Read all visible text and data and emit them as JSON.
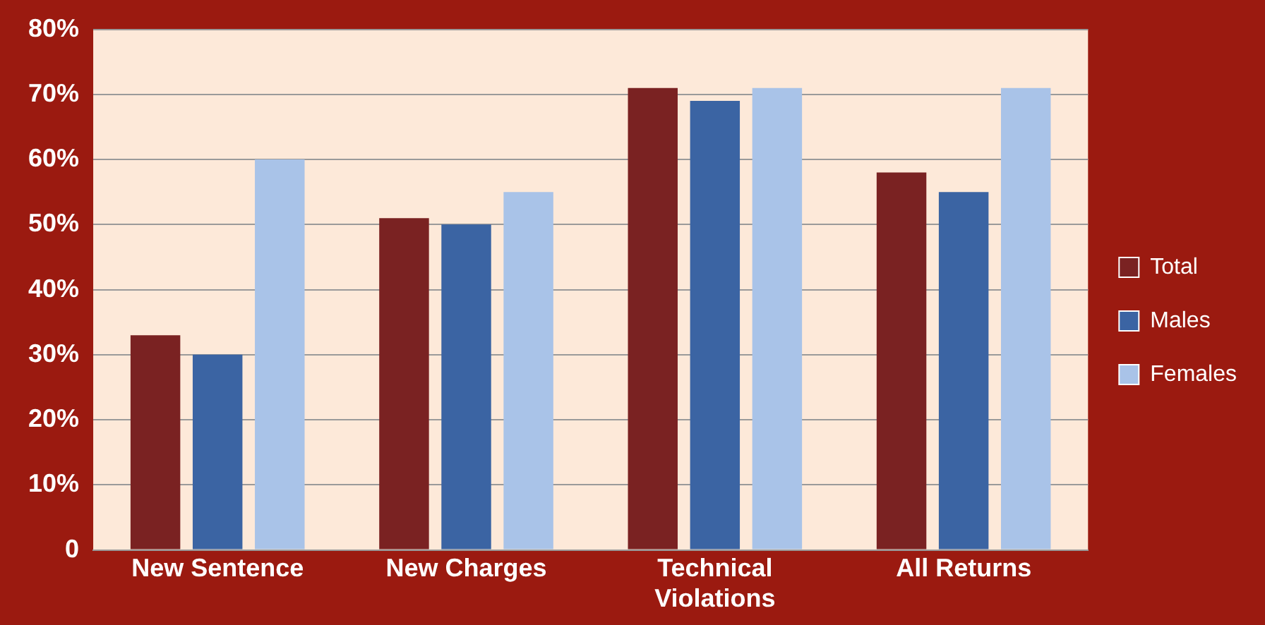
{
  "chart_data": {
    "type": "bar",
    "categories": [
      "New Sentence",
      "New Charges",
      "Technical Violations",
      "All Returns"
    ],
    "series": [
      {
        "name": "Total",
        "color": "#7a2222",
        "values": [
          33,
          51,
          71,
          58
        ]
      },
      {
        "name": "Males",
        "color": "#3b64a3",
        "values": [
          30,
          50,
          69,
          55
        ]
      },
      {
        "name": "Females",
        "color": "#a9c3e8",
        "values": [
          60,
          55,
          71,
          71
        ]
      }
    ],
    "ylim": [
      0,
      80
    ],
    "yticks": [
      0,
      {
        "value": 10,
        "label": "10%"
      },
      {
        "value": 20,
        "label": "20%"
      },
      {
        "value": 30,
        "label": "30%"
      },
      {
        "value": 40,
        "label": "40%"
      },
      {
        "value": 50,
        "label": "50%"
      },
      {
        "value": 60,
        "label": "60%"
      },
      {
        "value": 70,
        "label": "70%"
      },
      {
        "value": 80,
        "label": "80%"
      }
    ],
    "grid": "y",
    "legend": "right"
  }
}
